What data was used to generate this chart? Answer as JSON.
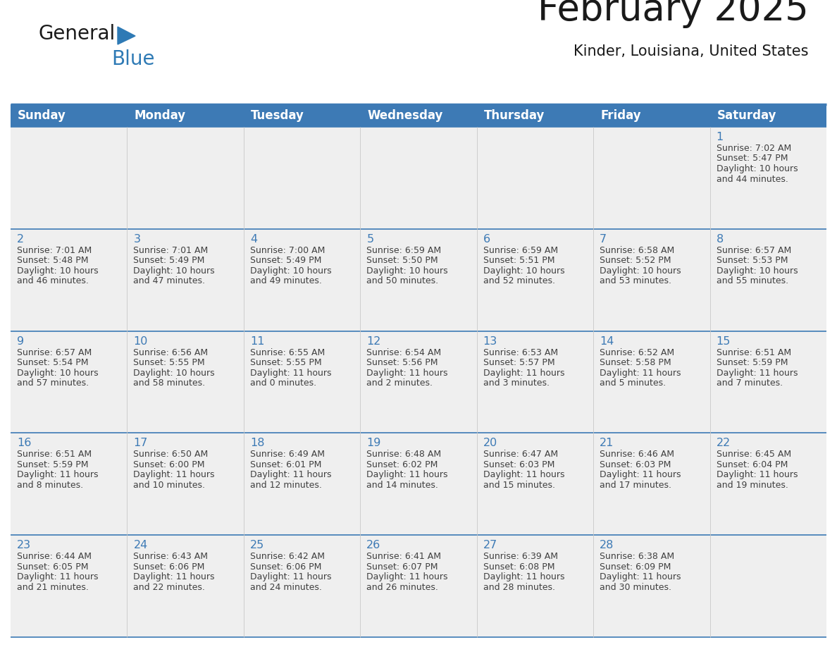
{
  "title": "February 2025",
  "subtitle": "Kinder, Louisiana, United States",
  "days_of_week": [
    "Sunday",
    "Monday",
    "Tuesday",
    "Wednesday",
    "Thursday",
    "Friday",
    "Saturday"
  ],
  "header_bg": "#3d7ab5",
  "header_text": "#ffffff",
  "cell_bg_light": "#efefef",
  "separator_color": "#3d7ab5",
  "day_number_color": "#3d7ab5",
  "info_text_color": "#404040",
  "logo_general_color": "#1a1a1a",
  "logo_blue_color": "#2e7ab5",
  "calendar_data": [
    [
      null,
      null,
      null,
      null,
      null,
      null,
      {
        "day": 1,
        "sunrise": "7:02 AM",
        "sunset": "5:47 PM",
        "daylight_line1": "Daylight: 10 hours",
        "daylight_line2": "and 44 minutes."
      }
    ],
    [
      {
        "day": 2,
        "sunrise": "7:01 AM",
        "sunset": "5:48 PM",
        "daylight_line1": "Daylight: 10 hours",
        "daylight_line2": "and 46 minutes."
      },
      {
        "day": 3,
        "sunrise": "7:01 AM",
        "sunset": "5:49 PM",
        "daylight_line1": "Daylight: 10 hours",
        "daylight_line2": "and 47 minutes."
      },
      {
        "day": 4,
        "sunrise": "7:00 AM",
        "sunset": "5:49 PM",
        "daylight_line1": "Daylight: 10 hours",
        "daylight_line2": "and 49 minutes."
      },
      {
        "day": 5,
        "sunrise": "6:59 AM",
        "sunset": "5:50 PM",
        "daylight_line1": "Daylight: 10 hours",
        "daylight_line2": "and 50 minutes."
      },
      {
        "day": 6,
        "sunrise": "6:59 AM",
        "sunset": "5:51 PM",
        "daylight_line1": "Daylight: 10 hours",
        "daylight_line2": "and 52 minutes."
      },
      {
        "day": 7,
        "sunrise": "6:58 AM",
        "sunset": "5:52 PM",
        "daylight_line1": "Daylight: 10 hours",
        "daylight_line2": "and 53 minutes."
      },
      {
        "day": 8,
        "sunrise": "6:57 AM",
        "sunset": "5:53 PM",
        "daylight_line1": "Daylight: 10 hours",
        "daylight_line2": "and 55 minutes."
      }
    ],
    [
      {
        "day": 9,
        "sunrise": "6:57 AM",
        "sunset": "5:54 PM",
        "daylight_line1": "Daylight: 10 hours",
        "daylight_line2": "and 57 minutes."
      },
      {
        "day": 10,
        "sunrise": "6:56 AM",
        "sunset": "5:55 PM",
        "daylight_line1": "Daylight: 10 hours",
        "daylight_line2": "and 58 minutes."
      },
      {
        "day": 11,
        "sunrise": "6:55 AM",
        "sunset": "5:55 PM",
        "daylight_line1": "Daylight: 11 hours",
        "daylight_line2": "and 0 minutes."
      },
      {
        "day": 12,
        "sunrise": "6:54 AM",
        "sunset": "5:56 PM",
        "daylight_line1": "Daylight: 11 hours",
        "daylight_line2": "and 2 minutes."
      },
      {
        "day": 13,
        "sunrise": "6:53 AM",
        "sunset": "5:57 PM",
        "daylight_line1": "Daylight: 11 hours",
        "daylight_line2": "and 3 minutes."
      },
      {
        "day": 14,
        "sunrise": "6:52 AM",
        "sunset": "5:58 PM",
        "daylight_line1": "Daylight: 11 hours",
        "daylight_line2": "and 5 minutes."
      },
      {
        "day": 15,
        "sunrise": "6:51 AM",
        "sunset": "5:59 PM",
        "daylight_line1": "Daylight: 11 hours",
        "daylight_line2": "and 7 minutes."
      }
    ],
    [
      {
        "day": 16,
        "sunrise": "6:51 AM",
        "sunset": "5:59 PM",
        "daylight_line1": "Daylight: 11 hours",
        "daylight_line2": "and 8 minutes."
      },
      {
        "day": 17,
        "sunrise": "6:50 AM",
        "sunset": "6:00 PM",
        "daylight_line1": "Daylight: 11 hours",
        "daylight_line2": "and 10 minutes."
      },
      {
        "day": 18,
        "sunrise": "6:49 AM",
        "sunset": "6:01 PM",
        "daylight_line1": "Daylight: 11 hours",
        "daylight_line2": "and 12 minutes."
      },
      {
        "day": 19,
        "sunrise": "6:48 AM",
        "sunset": "6:02 PM",
        "daylight_line1": "Daylight: 11 hours",
        "daylight_line2": "and 14 minutes."
      },
      {
        "day": 20,
        "sunrise": "6:47 AM",
        "sunset": "6:03 PM",
        "daylight_line1": "Daylight: 11 hours",
        "daylight_line2": "and 15 minutes."
      },
      {
        "day": 21,
        "sunrise": "6:46 AM",
        "sunset": "6:03 PM",
        "daylight_line1": "Daylight: 11 hours",
        "daylight_line2": "and 17 minutes."
      },
      {
        "day": 22,
        "sunrise": "6:45 AM",
        "sunset": "6:04 PM",
        "daylight_line1": "Daylight: 11 hours",
        "daylight_line2": "and 19 minutes."
      }
    ],
    [
      {
        "day": 23,
        "sunrise": "6:44 AM",
        "sunset": "6:05 PM",
        "daylight_line1": "Daylight: 11 hours",
        "daylight_line2": "and 21 minutes."
      },
      {
        "day": 24,
        "sunrise": "6:43 AM",
        "sunset": "6:06 PM",
        "daylight_line1": "Daylight: 11 hours",
        "daylight_line2": "and 22 minutes."
      },
      {
        "day": 25,
        "sunrise": "6:42 AM",
        "sunset": "6:06 PM",
        "daylight_line1": "Daylight: 11 hours",
        "daylight_line2": "and 24 minutes."
      },
      {
        "day": 26,
        "sunrise": "6:41 AM",
        "sunset": "6:07 PM",
        "daylight_line1": "Daylight: 11 hours",
        "daylight_line2": "and 26 minutes."
      },
      {
        "day": 27,
        "sunrise": "6:39 AM",
        "sunset": "6:08 PM",
        "daylight_line1": "Daylight: 11 hours",
        "daylight_line2": "and 28 minutes."
      },
      {
        "day": 28,
        "sunrise": "6:38 AM",
        "sunset": "6:09 PM",
        "daylight_line1": "Daylight: 11 hours",
        "daylight_line2": "and 30 minutes."
      },
      null
    ]
  ]
}
